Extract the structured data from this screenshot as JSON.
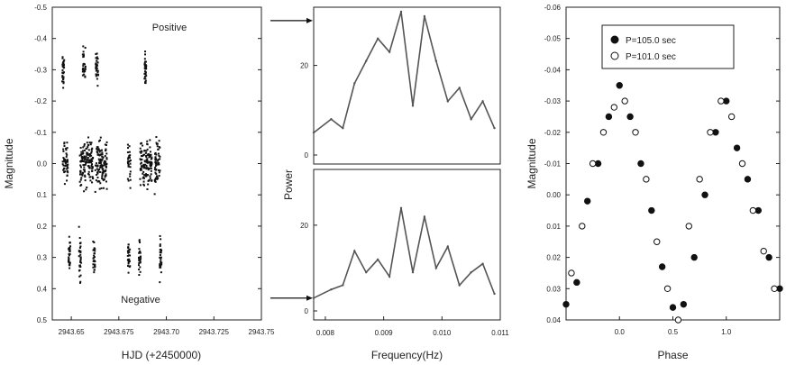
{
  "chart_data": [
    {
      "type": "scatter",
      "xlabel": "HJD (+2450000)",
      "ylabel": "Magnitude",
      "xlim": [
        2943.64,
        2943.75
      ],
      "ylim": [
        -0.5,
        0.5
      ],
      "y_inverted": true,
      "xticks": [
        2943.65,
        2943.675,
        2943.7,
        2943.725,
        2943.75
      ],
      "xtick_labels": [
        "2943.65",
        "2943.675",
        "2943.70",
        "2943.725",
        "2943.75"
      ],
      "yticks": [
        -0.5,
        -0.4,
        -0.3,
        -0.2,
        -0.1,
        0.0,
        0.1,
        0.2,
        0.3,
        0.4,
        0.5
      ],
      "ytick_labels": [
        "-0.5",
        "-0.4",
        "-0.3",
        "-0.2",
        "-0.1",
        "0.0",
        "0.1",
        "0.2",
        "0.3",
        "0.4",
        "0.5"
      ],
      "annotations": [
        "Positive",
        "Negative"
      ],
      "series": [
        {
          "segments": [
            {
              "x0": 2943.6455,
              "x1": 2943.6482,
              "y": 0.0,
              "spread": 0.065
            },
            {
              "x0": 2943.6545,
              "x1": 2943.6615,
              "y": 0.0,
              "spread": 0.07
            },
            {
              "x0": 2943.6625,
              "x1": 2943.6688,
              "y": 0.0,
              "spread": 0.07
            },
            {
              "x0": 2943.6797,
              "x1": 2943.6813,
              "y": 0.0,
              "spread": 0.065
            },
            {
              "x0": 2943.6862,
              "x1": 2943.6925,
              "y": 0.0,
              "spread": 0.07
            },
            {
              "x0": 2943.6938,
              "x1": 2943.6968,
              "y": 0.0,
              "spread": 0.07
            }
          ]
        },
        {
          "segments": [
            {
              "x0": 2943.6452,
              "x1": 2943.6463,
              "y": -0.3,
              "spread": 0.05
            },
            {
              "x0": 2943.656,
              "x1": 2943.6575,
              "y": -0.32,
              "spread": 0.06
            },
            {
              "x0": 2943.6628,
              "x1": 2943.6642,
              "y": -0.31,
              "spread": 0.05
            },
            {
              "x0": 2943.6885,
              "x1": 2943.6895,
              "y": -0.3,
              "spread": 0.05
            }
          ]
        },
        {
          "segments": [
            {
              "x0": 2943.6485,
              "x1": 2943.6495,
              "y": 0.29,
              "spread": 0.05
            },
            {
              "x0": 2943.654,
              "x1": 2943.6552,
              "y": 0.3,
              "spread": 0.08
            },
            {
              "x0": 2943.6615,
              "x1": 2943.6625,
              "y": 0.3,
              "spread": 0.05
            },
            {
              "x0": 2943.6797,
              "x1": 2943.6809,
              "y": 0.3,
              "spread": 0.06
            },
            {
              "x0": 2943.6855,
              "x1": 2943.6865,
              "y": 0.29,
              "spread": 0.05
            },
            {
              "x0": 2943.6965,
              "x1": 2943.6975,
              "y": 0.3,
              "spread": 0.07
            }
          ]
        }
      ]
    },
    {
      "type": "line",
      "xlabel": "Frequency(Hz)",
      "ylabel": "Power",
      "xlim": [
        0.0078,
        0.011
      ],
      "xticks": [
        0.008,
        0.009,
        0.01,
        0.011
      ],
      "xtick_labels": [
        "0.008",
        "0.009",
        "0.010",
        "0.011"
      ],
      "panels": [
        {
          "name": "top",
          "ylim": [
            0,
            33
          ],
          "yticks": [
            0,
            20
          ],
          "ytick_labels": [
            "0",
            "20"
          ],
          "arrow_y": 30,
          "x": [
            0.0078,
            0.0081,
            0.0083,
            0.0085,
            0.0087,
            0.0089,
            0.0091,
            0.0093,
            0.0095,
            0.0097,
            0.0099,
            0.0101,
            0.0103,
            0.0105,
            0.0107,
            0.0109
          ],
          "values": [
            5,
            8,
            6,
            16,
            21,
            26,
            23,
            32,
            11,
            31,
            21,
            12,
            15,
            8,
            12,
            6
          ]
        },
        {
          "name": "bottom",
          "ylim": [
            0,
            33
          ],
          "yticks": [
            0,
            20
          ],
          "ytick_labels": [
            "0",
            "20"
          ],
          "arrow_y": 3,
          "x": [
            0.0078,
            0.0081,
            0.0083,
            0.0085,
            0.0087,
            0.0089,
            0.0091,
            0.0093,
            0.0095,
            0.0097,
            0.0099,
            0.0101,
            0.0103,
            0.0105,
            0.0107,
            0.0109
          ],
          "values": [
            3,
            5,
            6,
            14,
            9,
            12,
            8,
            24,
            9,
            22,
            10,
            15,
            6,
            9,
            11,
            4
          ]
        }
      ]
    },
    {
      "type": "scatter",
      "xlabel": "Phase",
      "ylabel": "Magnitude",
      "xlim": [
        -0.5,
        1.5
      ],
      "ylim": [
        -0.06,
        0.04
      ],
      "y_inverted": true,
      "xticks": [
        0.0,
        0.5,
        1.0
      ],
      "xtick_labels": [
        "0.0",
        "0.5",
        "1.0"
      ],
      "yticks": [
        -0.06,
        -0.05,
        -0.04,
        -0.03,
        -0.02,
        -0.01,
        0.0,
        0.01,
        0.02,
        0.03,
        0.04
      ],
      "ytick_labels": [
        "-0.06",
        "-0.05",
        "-0.04",
        "-0.03",
        "-0.02",
        "-0.01",
        "0.00",
        "0.01",
        "0.02",
        "0.03",
        "0.04"
      ],
      "legend_position": "top-right",
      "series": [
        {
          "name": "P=105.0 sec",
          "marker": "filled-circle",
          "x": [
            -0.5,
            -0.4,
            -0.3,
            -0.2,
            -0.1,
            0.0,
            0.1,
            0.2,
            0.3,
            0.4,
            0.5,
            0.6,
            0.7,
            0.8,
            0.9,
            1.0,
            1.1,
            1.2,
            1.3,
            1.4,
            1.5
          ],
          "values": [
            0.035,
            0.028,
            0.002,
            -0.01,
            -0.025,
            -0.035,
            -0.025,
            -0.01,
            0.005,
            0.023,
            0.036,
            0.035,
            0.02,
            0.0,
            -0.02,
            -0.03,
            -0.015,
            -0.005,
            0.005,
            0.02,
            0.03
          ]
        },
        {
          "name": "P=101.0 sec",
          "marker": "open-circle",
          "x": [
            -0.45,
            -0.35,
            -0.25,
            -0.15,
            -0.05,
            0.05,
            0.15,
            0.25,
            0.35,
            0.45,
            0.55,
            0.65,
            0.75,
            0.85,
            0.95,
            1.05,
            1.15,
            1.25,
            1.35,
            1.45
          ],
          "values": [
            0.025,
            0.01,
            -0.01,
            -0.02,
            -0.028,
            -0.03,
            -0.02,
            -0.005,
            0.015,
            0.03,
            0.04,
            0.01,
            -0.005,
            -0.02,
            -0.03,
            -0.025,
            -0.01,
            0.005,
            0.018,
            0.03
          ]
        }
      ]
    }
  ]
}
